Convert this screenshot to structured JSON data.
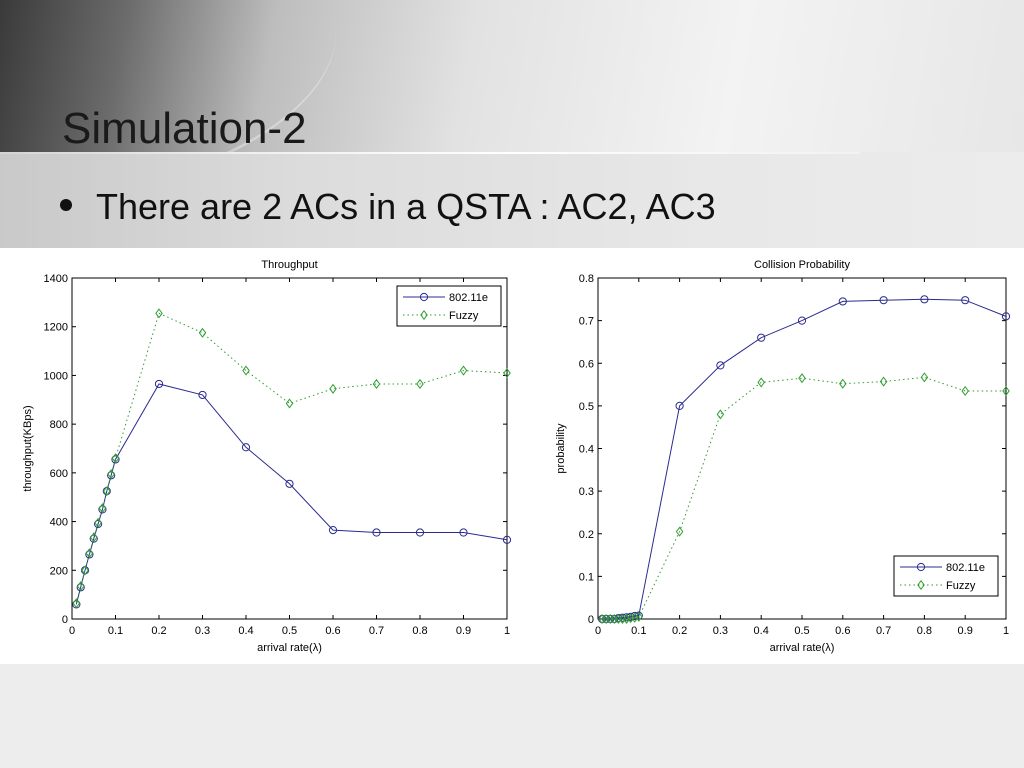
{
  "slide": {
    "title": "Simulation-2",
    "bullet": "There are 2 ACs in a QSTA : AC2, AC3"
  },
  "chart_data": [
    {
      "type": "line",
      "title": "Throughput",
      "xlabel": "arrival rate(λ)",
      "ylabel": "throughput(KBps)",
      "xlim": [
        0,
        1
      ],
      "ylim": [
        0,
        1400
      ],
      "xticks": [
        0,
        0.1,
        0.2,
        0.3,
        0.4,
        0.5,
        0.6,
        0.7,
        0.8,
        0.9,
        1
      ],
      "xtick_labels": [
        "0",
        "0.1",
        "0.2",
        "0.3",
        "0.4",
        "0.5",
        "0.6",
        "0.7",
        "0.8",
        "0.9",
        "1"
      ],
      "yticks": [
        0,
        200,
        400,
        600,
        800,
        1000,
        1200,
        1400
      ],
      "ytick_labels": [
        "0",
        "200",
        "400",
        "600",
        "800",
        "1000",
        "1200",
        "1400"
      ],
      "legend_position": "top-right",
      "series": [
        {
          "name": "802.11e",
          "color": "#2b2b8f",
          "marker": "circle",
          "line": "solid",
          "x": [
            0.01,
            0.02,
            0.03,
            0.04,
            0.05,
            0.06,
            0.07,
            0.08,
            0.09,
            0.1,
            0.2,
            0.3,
            0.4,
            0.5,
            0.6,
            0.7,
            0.8,
            0.9,
            1.0
          ],
          "y": [
            60,
            130,
            200,
            265,
            330,
            390,
            450,
            525,
            590,
            655,
            965,
            920,
            705,
            555,
            365,
            355,
            355,
            355,
            325
          ]
        },
        {
          "name": "Fuzzy",
          "color": "#2f9e2f",
          "marker": "diamond",
          "line": "dotted",
          "x": [
            0.01,
            0.02,
            0.03,
            0.04,
            0.05,
            0.06,
            0.07,
            0.08,
            0.09,
            0.1,
            0.2,
            0.3,
            0.4,
            0.5,
            0.6,
            0.7,
            0.8,
            0.9,
            1.0
          ],
          "y": [
            65,
            135,
            200,
            270,
            335,
            395,
            455,
            525,
            595,
            660,
            1255,
            1175,
            1020,
            885,
            945,
            965,
            965,
            1020,
            1010
          ]
        }
      ]
    },
    {
      "type": "line",
      "title": "Collision Probability",
      "xlabel": "arrival rate(λ)",
      "ylabel": "probability",
      "xlim": [
        0,
        1
      ],
      "ylim": [
        0,
        0.8
      ],
      "xticks": [
        0,
        0.1,
        0.2,
        0.3,
        0.4,
        0.5,
        0.6,
        0.7,
        0.8,
        0.9,
        1
      ],
      "xtick_labels": [
        "0",
        "0.1",
        "0.2",
        "0.3",
        "0.4",
        "0.5",
        "0.6",
        "0.7",
        "0.8",
        "0.9",
        "1"
      ],
      "yticks": [
        0,
        0.1,
        0.2,
        0.3,
        0.4,
        0.5,
        0.6,
        0.7,
        0.8
      ],
      "ytick_labels": [
        "0",
        "0.1",
        "0.2",
        "0.3",
        "0.4",
        "0.5",
        "0.6",
        "0.7",
        "0.8"
      ],
      "legend_position": "bottom-right",
      "series": [
        {
          "name": "802.11e",
          "color": "#2b2b8f",
          "marker": "circle",
          "line": "solid",
          "x": [
            0.01,
            0.02,
            0.03,
            0.04,
            0.05,
            0.06,
            0.07,
            0.08,
            0.09,
            0.1,
            0.2,
            0.3,
            0.4,
            0.5,
            0.6,
            0.7,
            0.8,
            0.9,
            1.0
          ],
          "y": [
            0,
            0,
            0,
            0,
            0.002,
            0.003,
            0.004,
            0.005,
            0.007,
            0.008,
            0.5,
            0.595,
            0.66,
            0.7,
            0.745,
            0.748,
            0.75,
            0.748,
            0.71
          ]
        },
        {
          "name": "Fuzzy",
          "color": "#2f9e2f",
          "marker": "diamond",
          "line": "dotted",
          "x": [
            0.01,
            0.02,
            0.03,
            0.04,
            0.05,
            0.06,
            0.07,
            0.08,
            0.09,
            0.1,
            0.2,
            0.3,
            0.4,
            0.5,
            0.6,
            0.7,
            0.8,
            0.9,
            1.0
          ],
          "y": [
            0,
            0,
            0,
            0,
            0,
            0,
            0,
            0.002,
            0.003,
            0.005,
            0.205,
            0.48,
            0.555,
            0.565,
            0.552,
            0.557,
            0.567,
            0.535,
            0.535
          ]
        }
      ]
    }
  ]
}
